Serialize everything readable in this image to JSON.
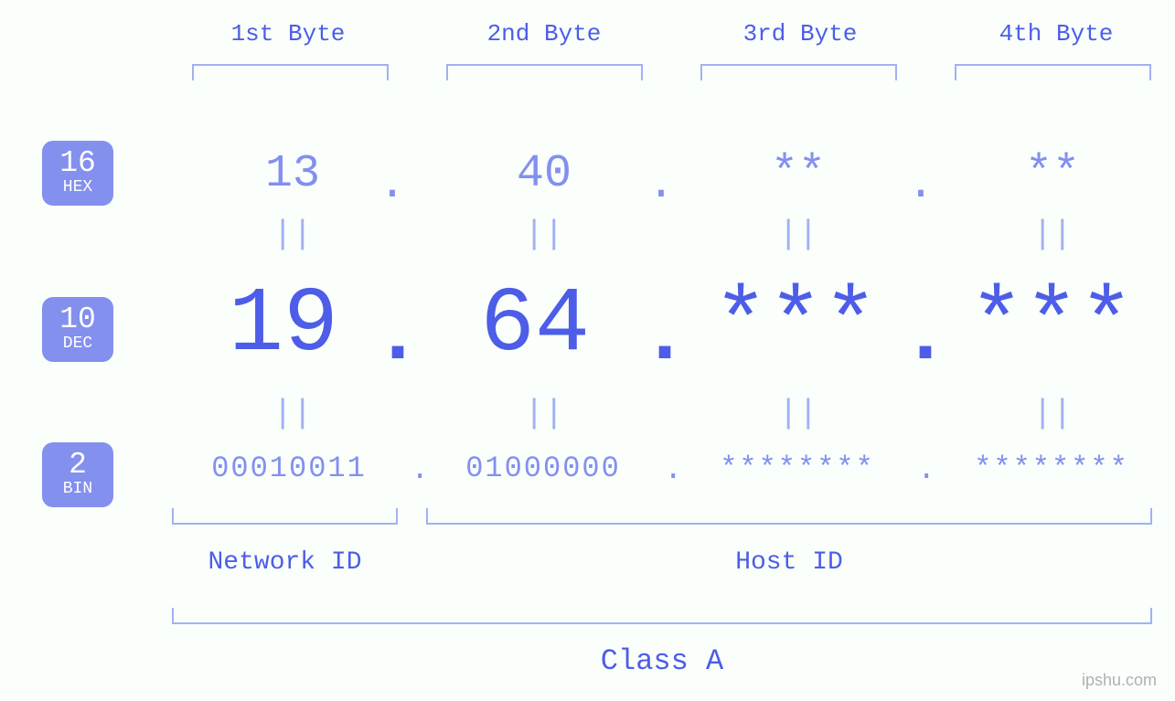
{
  "colors": {
    "background": "#fafffc",
    "primary": "#4d5de8",
    "secondary": "#8390ee",
    "bracket": "#a3b1f2",
    "badge_bg": "#8390ee",
    "badge_text": "#ffffff",
    "watermark": "#b0b0b0"
  },
  "byte_headers": [
    "1st Byte",
    "2nd Byte",
    "3rd Byte",
    "4th Byte"
  ],
  "badges": {
    "hex": {
      "num": "16",
      "label": "HEX"
    },
    "dec": {
      "num": "10",
      "label": "DEC"
    },
    "bin": {
      "num": "2",
      "label": "BIN"
    }
  },
  "hex_row": {
    "values": [
      "13",
      "40",
      "**",
      "**"
    ],
    "dot": "."
  },
  "dec_row": {
    "values": [
      "19",
      "64",
      "***",
      "***"
    ],
    "dot": "."
  },
  "bin_row": {
    "values": [
      "00010011",
      "01000000",
      "********",
      "********"
    ],
    "dot": "."
  },
  "equals_symbol": "||",
  "sections": {
    "network_id": "Network ID",
    "host_id": "Host ID",
    "class": "Class A"
  },
  "watermark": "ipshu.com",
  "font_sizes": {
    "byte_header": 26,
    "badge_num": 33,
    "badge_label": 18,
    "hex_value": 50,
    "dec_value": 100,
    "bin_value": 32,
    "equals": 36,
    "bottom_label": 28,
    "class_label": 32,
    "watermark": 18
  },
  "type": "infographic",
  "structure": "ip-address-representation"
}
